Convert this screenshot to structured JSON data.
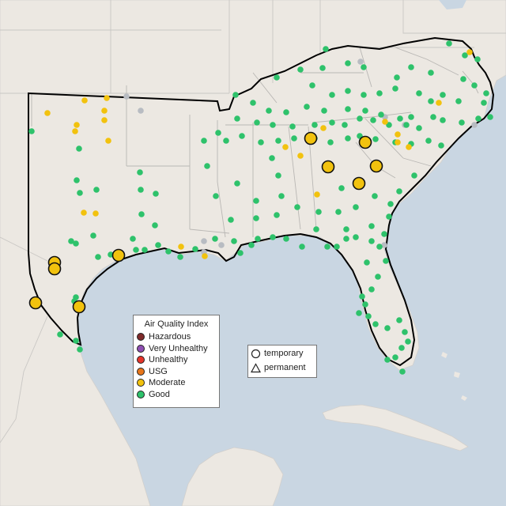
{
  "aqi_legend": {
    "title": "Air Quality Index",
    "categories": [
      {
        "label": "Hazardous",
        "color": "#7e2a2a"
      },
      {
        "label": "Very Unhealthy",
        "color": "#8f4fb3"
      },
      {
        "label": "Unhealthy",
        "color": "#e5342a"
      },
      {
        "label": "USG",
        "color": "#e8761a"
      },
      {
        "label": "Moderate",
        "color": "#f2c20e"
      },
      {
        "label": "Good",
        "color": "#2ec26b"
      }
    ]
  },
  "monitor_legend": {
    "items": [
      {
        "label": "temporary",
        "icon": "circle-icon"
      },
      {
        "label": "permanent",
        "icon": "triangle-icon"
      }
    ]
  },
  "colors": {
    "water": "#c9d6e2",
    "land": "#ece8e2",
    "region_outline": "#000000",
    "no_data_site": "#b8bcc2"
  }
}
